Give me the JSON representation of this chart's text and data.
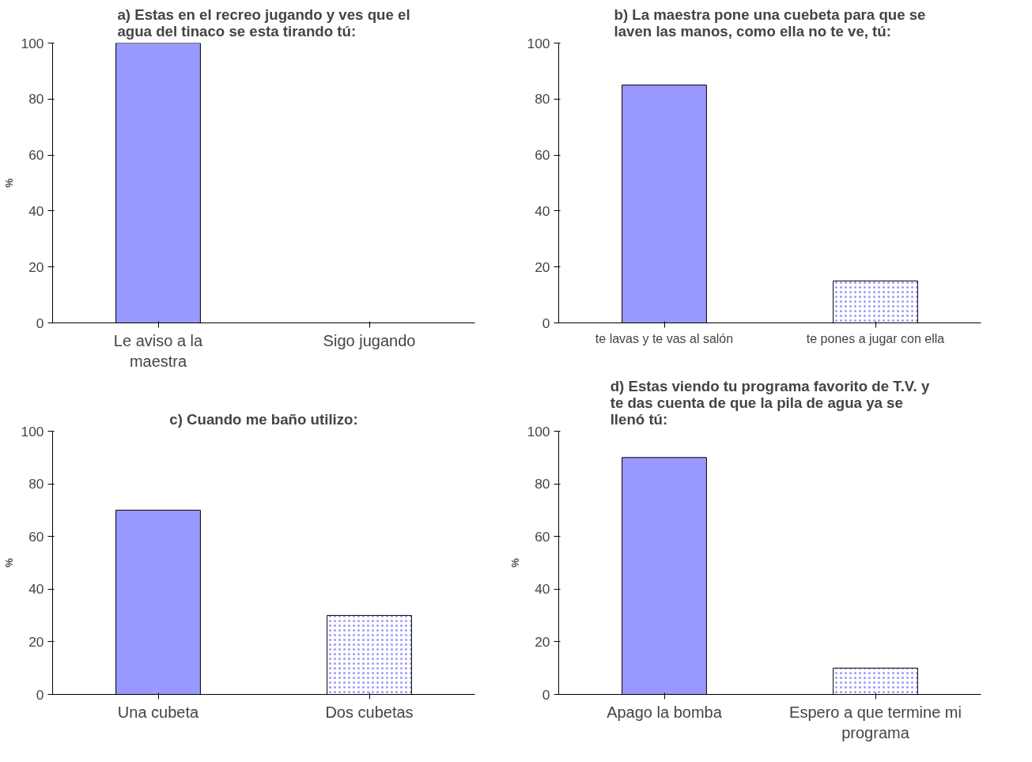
{
  "chart_data": [
    {
      "type": "bar",
      "title": "a) Estas en el recreo jugando y ves que el\nagua del tinaco se esta tirando tú:",
      "ylabel": "%",
      "categories": [
        "Le aviso a la\nmaestra",
        "Sigo jugando"
      ],
      "values": [
        100,
        0
      ],
      "colors": [
        "#9999ff",
        "#ffffff"
      ],
      "ylim": [
        0,
        100
      ],
      "yticks": [
        0,
        20,
        40,
        60,
        80,
        100
      ],
      "grid": false,
      "legend": false
    },
    {
      "type": "bar",
      "title": "b) La maestra pone una cuebeta para que se\nlaven las manos, como ella no te ve, tú:",
      "categories": [
        "te lavas y te vas al salón",
        "te pones a jugar con ella"
      ],
      "values": [
        85,
        15
      ],
      "colors": [
        "#9999ff",
        "#ffffff"
      ],
      "ylim": [
        0,
        100
      ],
      "yticks": [
        0,
        20,
        40,
        60,
        80,
        100
      ],
      "grid": false,
      "legend": false
    },
    {
      "type": "bar",
      "title": "c) Cuando me baño utilizo:",
      "ylabel": "%",
      "categories": [
        "Una cubeta",
        "Dos cubetas"
      ],
      "values": [
        70,
        30
      ],
      "colors": [
        "#9999ff",
        "#ffffff"
      ],
      "ylim": [
        0,
        100
      ],
      "yticks": [
        0,
        20,
        40,
        60,
        80,
        100
      ],
      "grid": false,
      "legend": false
    },
    {
      "type": "bar",
      "title": "d) Estas viendo tu programa favorito de T.V. y\nte das cuenta de que la pila de agua ya se\nllenó tú:",
      "ylabel": "%",
      "categories": [
        "Apago la bomba",
        "Espero a que termine mi\nprograma"
      ],
      "values": [
        90,
        10
      ],
      "colors": [
        "#9999ff",
        "#ffffff"
      ],
      "ylim": [
        0,
        100
      ],
      "yticks": [
        0,
        20,
        40,
        60,
        80,
        100
      ],
      "grid": false,
      "legend": false
    }
  ]
}
